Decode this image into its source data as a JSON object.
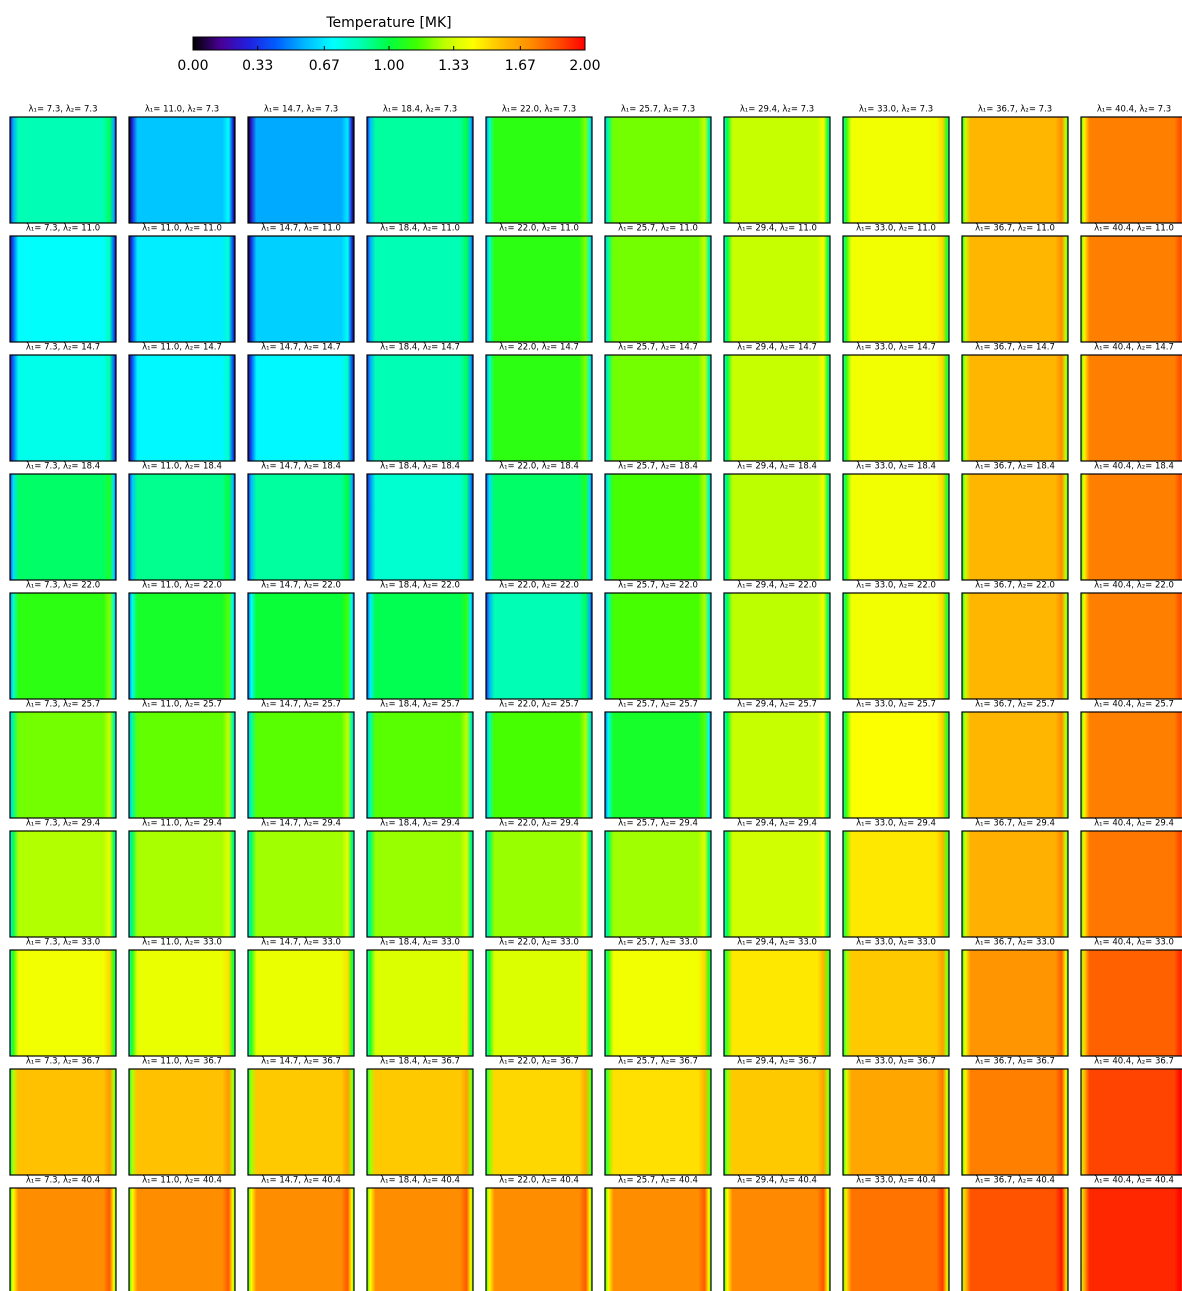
{
  "chart_data": {
    "type": "heatmap-grid",
    "title": "Temperature [MK]",
    "clim": [
      0,
      2
    ],
    "cticks": [
      {
        "value": 0,
        "label": "0.00"
      },
      {
        "value": 0.33,
        "label": "0.33"
      },
      {
        "value": 0.67,
        "label": "0.67"
      },
      {
        "value": 1,
        "label": "1.00"
      },
      {
        "value": 1.33,
        "label": "1.33"
      },
      {
        "value": 1.67,
        "label": "1.67"
      },
      {
        "value": 2,
        "label": "2.00"
      }
    ],
    "colormap": [
      "#000000",
      "#4a0098",
      "#2020e0",
      "#0060ff",
      "#00b8ff",
      "#00ffff",
      "#00ffb0",
      "#00ff40",
      "#40ff00",
      "#c0ff00",
      "#ffff00",
      "#ffc000",
      "#ff9000",
      "#ff5000",
      "#ff0000"
    ],
    "titles": [
      [
        "λ₁= 7.3, λ₂= 7.3",
        "λ₁= 11.0, λ₂= 7.3",
        "λ₁= 14.7, λ₂= 7.3",
        "λ₁= 18.4, λ₂= 7.3",
        "λ₁= 22.0, λ₂= 7.3",
        "λ₁= 25.7, λ₂= 7.3",
        "λ₁= 29.4, λ₂= 7.3",
        "λ₁= 33.0, λ₂= 7.3",
        "λ₁= 36.7, λ₂= 7.3",
        "λ₁= 40.4, λ₂= 7.3"
      ],
      [
        "λ₁= 7.3, λ₂= 11.0",
        "λ₁= 11.0, λ₂= 11.0",
        "λ₁= 14.7, λ₂= 11.0",
        "λ₁= 18.4, λ₂= 11.0",
        "λ₁= 22.0, λ₂= 11.0",
        "λ₁= 25.7, λ₂= 11.0",
        "λ₁= 29.4, λ₂= 11.0",
        "λ₁= 33.0, λ₂= 11.0",
        "λ₁= 36.7, λ₂= 11.0",
        "λ₁= 40.4, λ₂= 11.0"
      ],
      [
        "λ₁= 7.3, λ₂= 14.7",
        "λ₁= 11.0, λ₂= 14.7",
        "λ₁= 14.7, λ₂= 14.7",
        "λ₁= 18.4, λ₂= 14.7",
        "λ₁= 22.0, λ₂= 14.7",
        "λ₁= 25.7, λ₂= 14.7",
        "λ₁= 29.4, λ₂= 14.7",
        "λ₁= 33.0, λ₂= 14.7",
        "λ₁= 36.7, λ₂= 14.7",
        "λ₁= 40.4, λ₂= 14.7"
      ],
      [
        "λ₁= 7.3, λ₂= 18.4",
        "λ₁= 11.0, λ₂= 18.4",
        "λ₁= 14.7, λ₂= 18.4",
        "λ₁= 18.4, λ₂= 18.4",
        "λ₁= 22.0, λ₂= 18.4",
        "λ₁= 25.7, λ₂= 18.4",
        "λ₁= 29.4, λ₂= 18.4",
        "λ₁= 33.0, λ₂= 18.4",
        "λ₁= 36.7, λ₂= 18.4",
        "λ₁= 40.4, λ₂= 18.4"
      ],
      [
        "λ₁= 7.3, λ₂= 22.0",
        "λ₁= 11.0, λ₂= 22.0",
        "λ₁= 14.7, λ₂= 22.0",
        "λ₁= 18.4, λ₂= 22.0",
        "λ₁= 22.0, λ₂= 22.0",
        "λ₁= 25.7, λ₂= 22.0",
        "λ₁= 29.4, λ₂= 22.0",
        "λ₁= 33.0, λ₂= 22.0",
        "λ₁= 36.7, λ₂= 22.0",
        "λ₁= 40.4, λ₂= 22.0"
      ],
      [
        "λ₁= 7.3, λ₂= 25.7",
        "λ₁= 11.0, λ₂= 25.7",
        "λ₁= 14.7, λ₂= 25.7",
        "λ₁= 18.4, λ₂= 25.7",
        "λ₁= 22.0, λ₂= 25.7",
        "λ₁= 25.7, λ₂= 25.7",
        "λ₁= 29.4, λ₂= 25.7",
        "λ₁= 33.0, λ₂= 25.7",
        "λ₁= 36.7, λ₂= 25.7",
        "λ₁= 40.4, λ₂= 25.7"
      ],
      [
        "λ₁= 7.3, λ₂= 29.4",
        "λ₁= 11.0, λ₂= 29.4",
        "λ₁= 14.7, λ₂= 29.4",
        "λ₁= 18.4, λ₂= 29.4",
        "λ₁= 22.0, λ₂= 29.4",
        "λ₁= 25.7, λ₂= 29.4",
        "λ₁= 29.4, λ₂= 29.4",
        "λ₁= 33.0, λ₂= 29.4",
        "λ₁= 36.7, λ₂= 29.4",
        "λ₁= 40.4, λ₂= 29.4"
      ],
      [
        "λ₁= 7.3, λ₂= 33.0",
        "λ₁= 11.0, λ₂= 33.0",
        "λ₁= 14.7, λ₂= 33.0",
        "λ₁= 18.4, λ₂= 33.0",
        "λ₁= 22.0, λ₂= 33.0",
        "λ₁= 25.7, λ₂= 33.0",
        "λ₁= 29.4, λ₂= 33.0",
        "λ₁= 33.0, λ₂= 33.0",
        "λ₁= 36.7, λ₂= 33.0",
        "λ₁= 40.4, λ₂= 33.0"
      ],
      [
        "λ₁= 7.3, λ₂= 36.7",
        "λ₁= 11.0, λ₂= 36.7",
        "λ₁= 14.7, λ₂= 36.7",
        "λ₁= 18.4, λ₂= 36.7",
        "λ₁= 22.0, λ₂= 36.7",
        "λ₁= 25.7, λ₂= 36.7",
        "λ₁= 29.4, λ₂= 36.7",
        "λ₁= 33.0, λ₂= 36.7",
        "λ₁= 36.7, λ₂= 36.7",
        "λ₁= 40.4, λ₂= 36.7"
      ],
      [
        "λ₁= 7.3, λ₂= 40.4",
        "λ₁= 11.0, λ₂= 40.4",
        "λ₁= 14.7, λ₂= 40.4",
        "λ₁= 18.4, λ₂= 40.4",
        "λ₁= 22.0, λ₂= 40.4",
        "λ₁= 25.7, λ₂= 40.4",
        "λ₁= 29.4, λ₂= 40.4",
        "λ₁= 33.0, λ₂= 40.4",
        "λ₁= 36.7, λ₂= 40.4",
        "λ₁= 40.4, λ₂= 40.4"
      ]
    ],
    "values": [
      [
        0.85,
        0.6,
        0.55,
        0.88,
        1.1,
        1.2,
        1.3,
        1.4,
        1.6,
        1.75
      ],
      [
        0.72,
        0.68,
        0.62,
        0.85,
        1.1,
        1.2,
        1.3,
        1.4,
        1.6,
        1.75
      ],
      [
        0.75,
        0.7,
        0.7,
        0.85,
        1.1,
        1.2,
        1.3,
        1.4,
        1.6,
        1.75
      ],
      [
        0.95,
        0.9,
        0.88,
        0.8,
        0.95,
        1.15,
        1.28,
        1.4,
        1.6,
        1.75
      ],
      [
        1.1,
        1.05,
        1.02,
        0.98,
        0.85,
        1.15,
        1.28,
        1.4,
        1.6,
        1.75
      ],
      [
        1.2,
        1.18,
        1.17,
        1.17,
        1.15,
        1.05,
        1.3,
        1.42,
        1.6,
        1.75
      ],
      [
        1.27,
        1.26,
        1.25,
        1.24,
        1.24,
        1.25,
        1.32,
        1.48,
        1.62,
        1.77
      ],
      [
        1.4,
        1.38,
        1.38,
        1.35,
        1.35,
        1.4,
        1.48,
        1.55,
        1.7,
        1.82
      ],
      [
        1.57,
        1.57,
        1.55,
        1.55,
        1.52,
        1.5,
        1.55,
        1.65,
        1.75,
        1.88
      ],
      [
        1.72,
        1.72,
        1.72,
        1.72,
        1.72,
        1.72,
        1.73,
        1.78,
        1.85,
        1.93
      ]
    ]
  }
}
